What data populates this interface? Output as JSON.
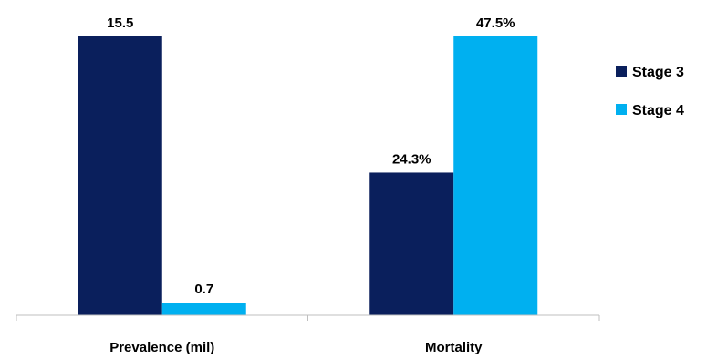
{
  "chart_data": {
    "type": "bar",
    "categories": [
      "Prevalence (mil)",
      "Mortality"
    ],
    "series": [
      {
        "name": "Stage 3",
        "color": "#0a1f5c",
        "values": [
          15.5,
          24.3
        ],
        "labels": [
          "15.5",
          "24.3%"
        ]
      },
      {
        "name": "Stage 4",
        "color": "#00b0f0",
        "values": [
          0.7,
          47.5
        ],
        "labels": [
          "0.7",
          "47.5%"
        ]
      }
    ],
    "category_scales": [
      {
        "unit": "mil",
        "max": 15.5
      },
      {
        "unit": "%",
        "max": 47.5
      }
    ],
    "legend": {
      "position": "right"
    },
    "grid": false
  }
}
